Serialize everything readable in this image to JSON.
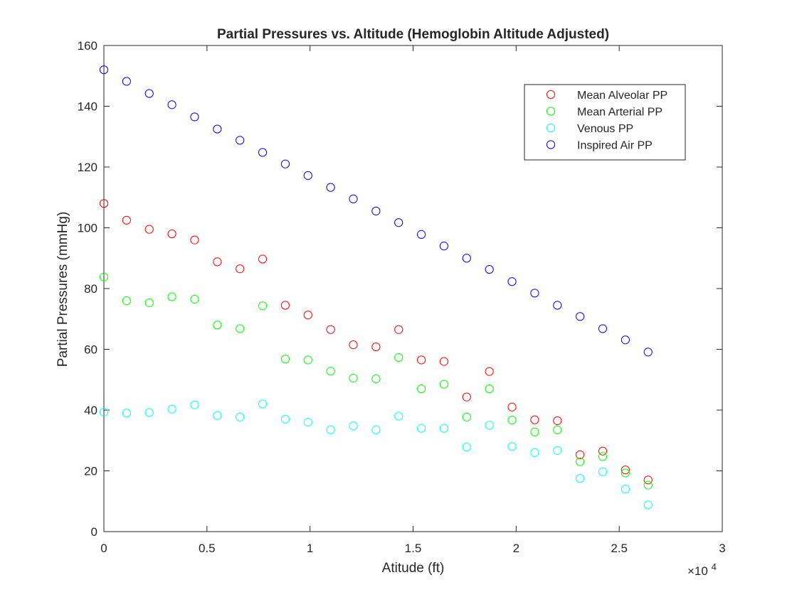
{
  "figure": {
    "background": "#ffffff",
    "axes_color": "#262626"
  },
  "chart_data": {
    "type": "scatter",
    "title": "Partial Pressures vs. Altitude (Hemoglobin Altitude Adjusted)",
    "xlabel": "Atitude (ft)",
    "ylabel": "Partial Pressures (mmHg)",
    "x_exponent_label": "×10",
    "x_exponent_power": "4",
    "xlim": [
      0,
      30000
    ],
    "ylim": [
      0,
      160
    ],
    "xticks": [
      0,
      5000,
      10000,
      15000,
      20000,
      25000,
      30000
    ],
    "xtick_labels": [
      "0",
      "0.5",
      "1",
      "1.5",
      "2",
      "2.5",
      "3"
    ],
    "yticks": [
      0,
      20,
      40,
      60,
      80,
      100,
      120,
      140,
      160
    ],
    "ytick_labels": [
      "0",
      "20",
      "40",
      "60",
      "80",
      "100",
      "120",
      "140",
      "160"
    ],
    "grid": false,
    "box": true,
    "legend_position": "top-right",
    "marker": "open-circle",
    "x": [
      0,
      1100,
      2200,
      3300,
      4400,
      5500,
      6600,
      7700,
      8800,
      9900,
      11000,
      12100,
      13200,
      14300,
      15400,
      16500,
      17600,
      18700,
      19800,
      20900,
      22000,
      23100,
      24200,
      25300,
      26400
    ],
    "series": [
      {
        "name": "Mean Alveolar PP",
        "color": "#ff0000",
        "values": [
          108,
          102.5,
          99.5,
          98,
          96,
          88.8,
          86.5,
          89.7,
          74.5,
          71.3,
          66.5,
          61.5,
          60.8,
          66.5,
          56.5,
          56,
          44.3,
          52.7,
          41,
          36.8,
          36.5,
          25.3,
          26.5,
          20.3,
          17
        ]
      },
      {
        "name": "Mean Arterial PP",
        "color": "#00ff00",
        "values": [
          83.8,
          76,
          75.3,
          77.3,
          76.5,
          68,
          66.8,
          74.3,
          56.8,
          56.5,
          52.8,
          50.5,
          50.3,
          57.3,
          47,
          48.5,
          37.7,
          47,
          36.7,
          32.8,
          33.5,
          23,
          24.7,
          19.3,
          15.3
        ]
      },
      {
        "name": "Venous PP",
        "color": "#00ffff",
        "values": [
          39.3,
          39,
          39.2,
          40.3,
          41.7,
          38.2,
          37.7,
          42,
          37,
          36,
          33.5,
          34.8,
          33.5,
          38,
          34,
          34,
          27.8,
          35,
          28,
          26,
          26.7,
          17.5,
          19.7,
          14,
          8.8
        ]
      },
      {
        "name": "Inspired Air PP",
        "color": "#0000ff",
        "values": [
          152,
          148.2,
          144.2,
          140.5,
          136.5,
          132.5,
          128.8,
          124.8,
          121,
          117.2,
          113.3,
          109.5,
          105.5,
          101.7,
          97.8,
          94,
          90,
          86.3,
          82.3,
          78.5,
          74.5,
          70.8,
          66.8,
          63.1,
          59.1
        ]
      }
    ]
  }
}
